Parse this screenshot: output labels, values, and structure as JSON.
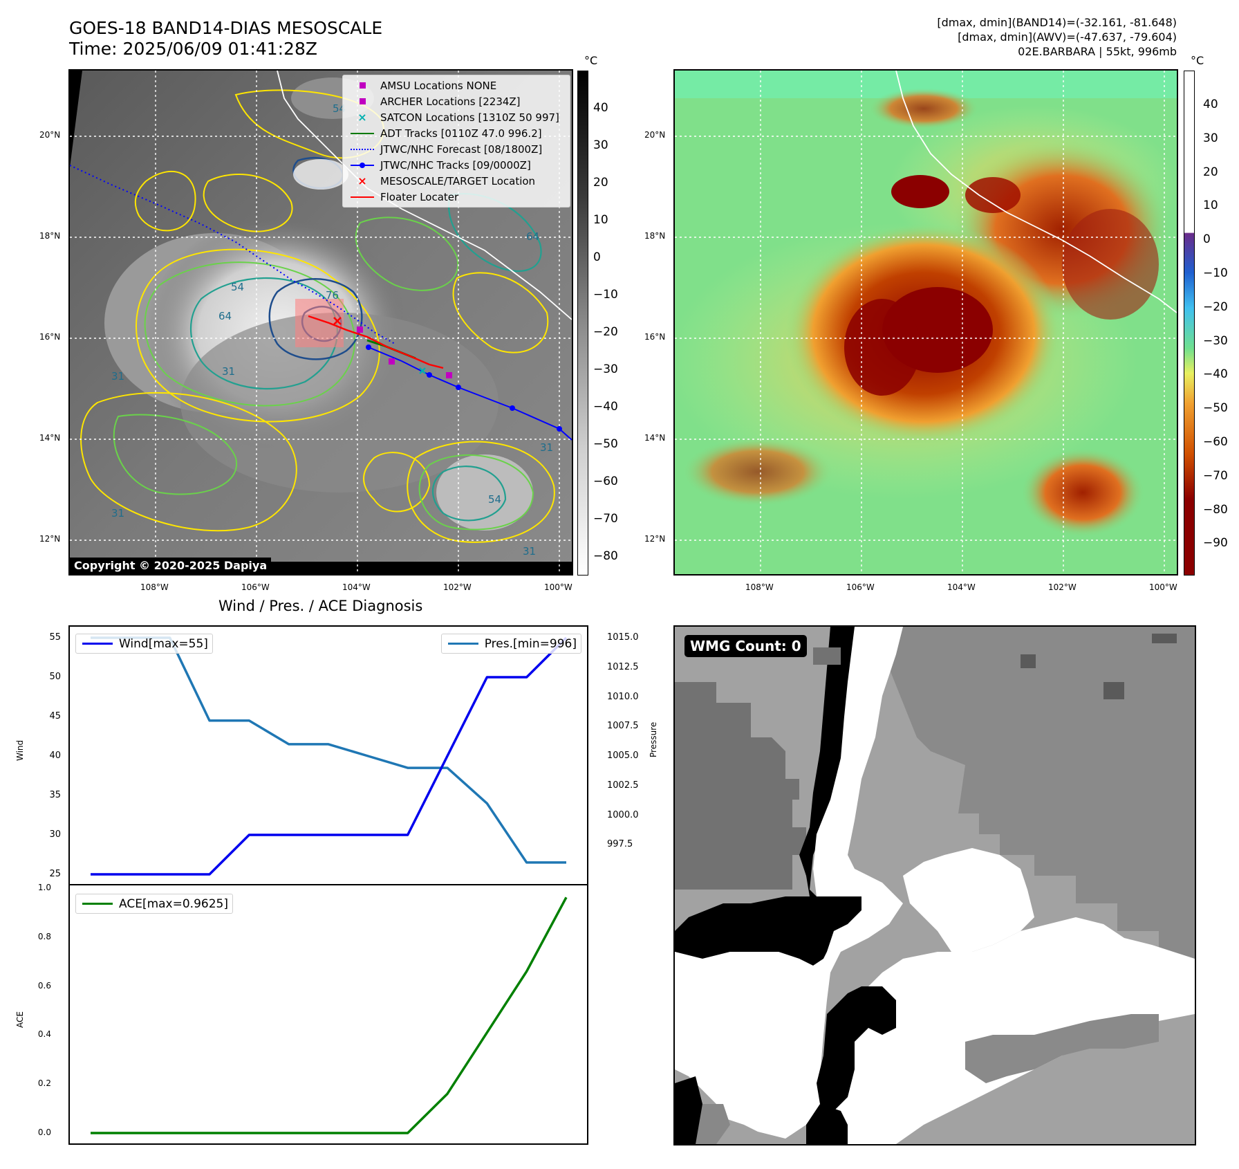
{
  "header": {
    "title_line1": "GOES-18 BAND14-DIAS MESOSCALE",
    "title_line2": "Time: 2025/06/09 01:41:28Z",
    "info_line1": "[dmax, dmin](BAND14)=(-32.161, -81.648)",
    "info_line2": "[dmax, dmin](AWV)=(-47.637, -79.604)",
    "info_line3": "02E.BARBARA | 55kt, 996mb"
  },
  "map_left": {
    "legend": [
      {
        "label": "AMSU Locations NONE",
        "symbol": "square",
        "color": "#c000c0"
      },
      {
        "label": "ARCHER Locations [2234Z]",
        "symbol": "square",
        "color": "#c000c0"
      },
      {
        "label": "SATCON Locations [1310Z 50 997]",
        "symbol": "x",
        "color": "#00b0b0"
      },
      {
        "label": "ADT Tracks [0110Z 47.0 996.2]",
        "symbol": "line",
        "color": "#007a00"
      },
      {
        "label": "JTWC/NHC Forecast [08/1800Z]",
        "symbol": "dotted",
        "color": "#0000ff"
      },
      {
        "label": "JTWC/NHC Tracks [09/0000Z]",
        "symbol": "line-dot",
        "color": "#0000ff"
      },
      {
        "label": "MESOSCALE/TARGET Location",
        "symbol": "x",
        "color": "#ff0000"
      },
      {
        "label": "Floater Locater",
        "symbol": "line",
        "color": "#ff0000"
      }
    ],
    "copyright": "Copyright © 2020-2025 Dapiya",
    "colorbar_unit": "°C",
    "colorbar_ticks": [
      "40",
      "30",
      "20",
      "10",
      "0",
      "−10",
      "−20",
      "−30",
      "−40",
      "−50",
      "−60",
      "−70",
      "−80"
    ],
    "contour_labels": [
      "54",
      "64",
      "64",
      "76",
      "31",
      "31",
      "31",
      "31",
      "54",
      "31",
      "54"
    ]
  },
  "map_right": {
    "colorbar_unit": "°C",
    "colorbar_ticks": [
      "40",
      "30",
      "20",
      "10",
      "0",
      "−10",
      "−20",
      "−30",
      "−40",
      "−50",
      "−60",
      "−70",
      "−80",
      "−90"
    ]
  },
  "map_axes": {
    "lon_ticks": [
      "108°W",
      "106°W",
      "104°W",
      "102°W",
      "100°W"
    ],
    "lat_ticks": [
      "20°N",
      "18°N",
      "16°N",
      "14°N",
      "12°N"
    ]
  },
  "colors": {
    "wind": "#0000ee",
    "pressure": "#1f77b4",
    "ace": "#008000",
    "dmax": "#8b0000"
  },
  "chart_data": [
    {
      "type": "line",
      "title": "Wind / Pres. / ACE Diagnosis",
      "ylabel": "Wind",
      "ylabel_right": "Pressure",
      "ylim": [
        25,
        55
      ],
      "ylim_right": [
        995.0,
        1015.0
      ],
      "yticks": [
        "55",
        "50",
        "45",
        "40",
        "35",
        "30",
        "25"
      ],
      "yticks_right": [
        "1015.0",
        "1012.5",
        "1010.0",
        "1007.5",
        "1005.0",
        "1002.5",
        "1000.0",
        "997.5"
      ],
      "x": [
        0,
        1,
        2,
        3,
        4,
        5,
        6,
        7,
        8,
        9,
        10,
        11,
        12
      ],
      "series": [
        {
          "name": "Wind[max=55]",
          "axis": "left",
          "values": [
            25,
            25,
            25,
            25,
            30,
            30,
            30,
            30,
            30,
            40,
            50,
            50,
            55
          ]
        },
        {
          "name": "Pres.[min=996]",
          "axis": "right",
          "values": [
            1015,
            1015,
            1015,
            1008,
            1008,
            1006,
            1006,
            1005,
            1004,
            1004,
            1001,
            996,
            996
          ]
        }
      ]
    },
    {
      "type": "line",
      "ylabel": "ACE",
      "ylim": [
        0.0,
        1.0
      ],
      "yticks": [
        "1.0",
        "0.8",
        "0.6",
        "0.4",
        "0.2",
        "0.0"
      ],
      "x": [
        0,
        1,
        2,
        3,
        4,
        5,
        6,
        7,
        8,
        9,
        10,
        11,
        12
      ],
      "series": [
        {
          "name": "ACE[max=0.9625]",
          "values": [
            0,
            0,
            0,
            0,
            0,
            0,
            0,
            0,
            0,
            0.16,
            0.41,
            0.66,
            0.9625
          ]
        }
      ]
    }
  ],
  "wmg": {
    "label": "WMG Count: 0"
  }
}
